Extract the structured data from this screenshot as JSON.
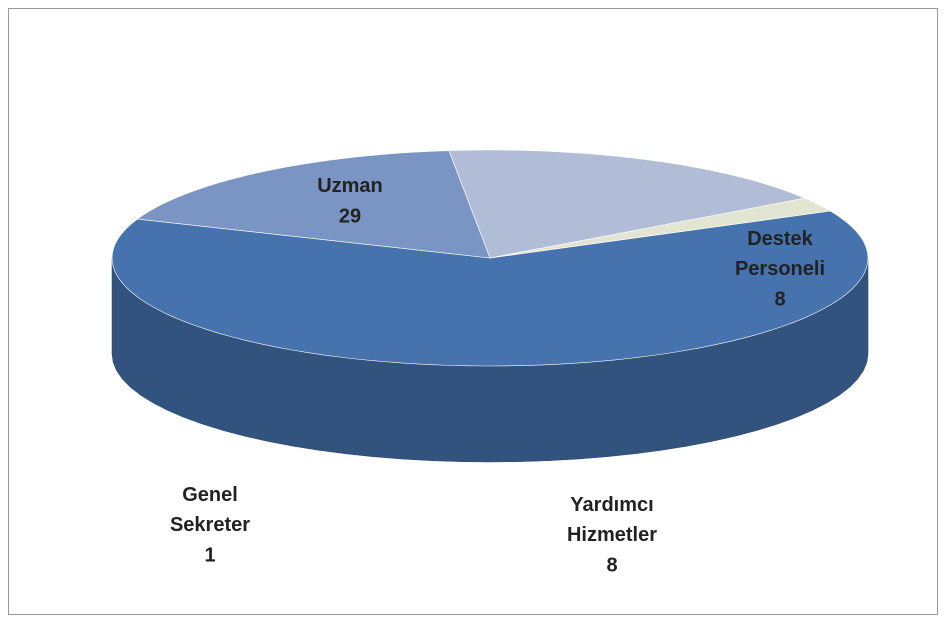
{
  "chart_data": {
    "type": "pie3d",
    "categories": [
      "Uzman",
      "Destek Personeli",
      "Yardımcı Hizmetler",
      "Genel Sekreter"
    ],
    "values": [
      29,
      8,
      8,
      1
    ],
    "colors": [
      "#4673ad",
      "#7a95c3",
      "#b1bdd7",
      "#e1e5d1"
    ]
  }
}
